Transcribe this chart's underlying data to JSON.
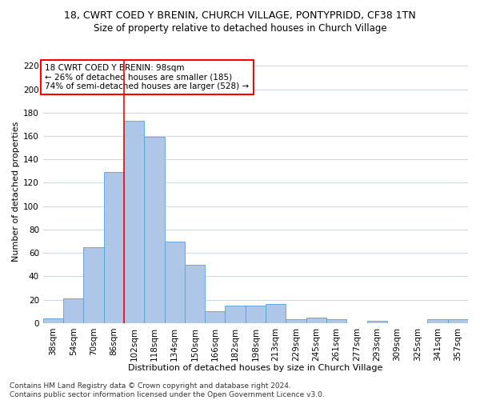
{
  "title1": "18, CWRT COED Y BRENIN, CHURCH VILLAGE, PONTYPRIDD, CF38 1TN",
  "title2": "Size of property relative to detached houses in Church Village",
  "xlabel": "Distribution of detached houses by size in Church Village",
  "ylabel": "Number of detached properties",
  "categories": [
    "38sqm",
    "54sqm",
    "70sqm",
    "86sqm",
    "102sqm",
    "118sqm",
    "134sqm",
    "150sqm",
    "166sqm",
    "182sqm",
    "198sqm",
    "213sqm",
    "229sqm",
    "245sqm",
    "261sqm",
    "277sqm",
    "293sqm",
    "309sqm",
    "325sqm",
    "341sqm",
    "357sqm"
  ],
  "values": [
    4,
    21,
    65,
    129,
    173,
    159,
    70,
    50,
    10,
    15,
    15,
    16,
    3,
    5,
    3,
    0,
    2,
    0,
    0,
    3,
    3
  ],
  "bar_color": "#aec6e8",
  "bar_edge_color": "#5a9fd4",
  "marker_label_line1": "18 CWRT COED Y BRENIN: 98sqm",
  "marker_label_line2": "← 26% of detached houses are smaller (185)",
  "marker_label_line3": "74% of semi-detached houses are larger (528) →",
  "ylim": [
    0,
    225
  ],
  "yticks": [
    0,
    20,
    40,
    60,
    80,
    100,
    120,
    140,
    160,
    180,
    200,
    220
  ],
  "footer1": "Contains HM Land Registry data © Crown copyright and database right 2024.",
  "footer2": "Contains public sector information licensed under the Open Government Licence v3.0.",
  "bg_color": "#ffffff",
  "grid_color": "#d0d8e8",
  "title1_fontsize": 9,
  "title2_fontsize": 8.5,
  "axis_fontsize": 8,
  "tick_fontsize": 7.5,
  "footer_fontsize": 6.5,
  "annot_fontsize": 7.5
}
